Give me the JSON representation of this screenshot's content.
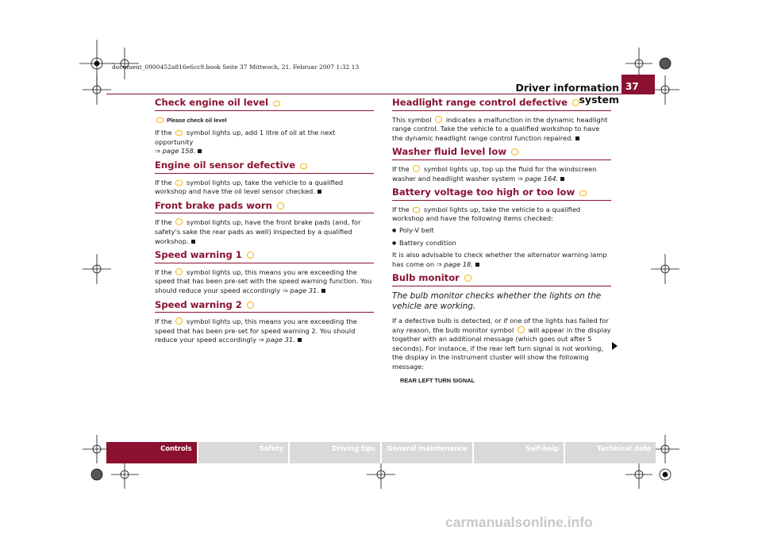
{
  "file_line": "document_0900452a816e6cc9.book  Seite 37  Mittwoch, 21. Februar 2007  1:32 13",
  "header": {
    "title": "Driver information system",
    "page": "37"
  },
  "left": {
    "s1": {
      "title": "Check engine oil level",
      "sub": "Please check oil level",
      "p1": "If the",
      "p2": "symbol lights up, add 1 litre of oil at the next opportunity",
      "ref": "⇒ page 158."
    },
    "s2": {
      "title": "Engine oil sensor defective",
      "p1": "If the",
      "p2": "symbol lights up, take the vehicle to a qualified workshop and have the oil level sensor checked."
    },
    "s3": {
      "title": "Front brake pads worn",
      "p1": "If the",
      "p2": "symbol lights up, have the front brake pads (and, for safety's sake the rear pads as well) inspected by a qualified workshop."
    },
    "s4": {
      "title": "Speed warning 1",
      "p1": "If the",
      "p2": "symbol lights up, this means you are exceeding the speed that has been pre-set with the speed warning function. You should reduce your speed accordingly",
      "ref": "⇒ page 31."
    },
    "s5": {
      "title": "Speed warning 2",
      "p1": "If the",
      "p2": "symbol lights up, this means you are exceeding the speed that has been pre-set for speed warning 2. You should reduce your speed accordingly",
      "ref": "⇒ page 31."
    }
  },
  "right": {
    "s1": {
      "title": "Headlight range control defective",
      "p1": "This symbol",
      "p2": "indicates a malfunction in the dynamic headlight range control. Take the vehicle to a qualified workshop to have the dynamic headlight range control function repaired."
    },
    "s2": {
      "title": "Washer fluid level low",
      "p1": "If the",
      "p2": "symbol lights up, top up the fluid for the windscreen washer and headlight washer system",
      "ref": "⇒ page 164."
    },
    "s3": {
      "title": "Battery voltage too high or too low",
      "p1": "If the",
      "p2": "symbol lights up, take the vehicle to a qualified workshop and have the following items checked:",
      "items": [
        "Poly-V belt",
        "Battery condition"
      ],
      "p3": "It is also advisable to check whether the alternator warning lamp has come on",
      "ref": "⇒ page 18."
    },
    "s4": {
      "title": "Bulb monitor",
      "lead": "The bulb monitor checks whether the lights on the vehicle are working.",
      "p1": "If a defective bulb is detected, or if one of the lights has failed for any reason, the bulb monitor symbol",
      "p2": "will appear in the display together with an additional message (which goes out after 5 seconds). For instance, if the rear left turn signal is not working, the display in the instrument cluster will show the following message:",
      "msg": "REAR LEFT TURN SIGNAL"
    }
  },
  "footer": {
    "tabs": [
      "Controls",
      "Safety",
      "Driving tips",
      "General maintenance",
      "Self-help",
      "Technical data"
    ]
  },
  "watermark": "carmanualsonline.info",
  "colors": {
    "accent": "#8a1230",
    "icon": "#f2b400",
    "tab": "#d9d9d9"
  }
}
